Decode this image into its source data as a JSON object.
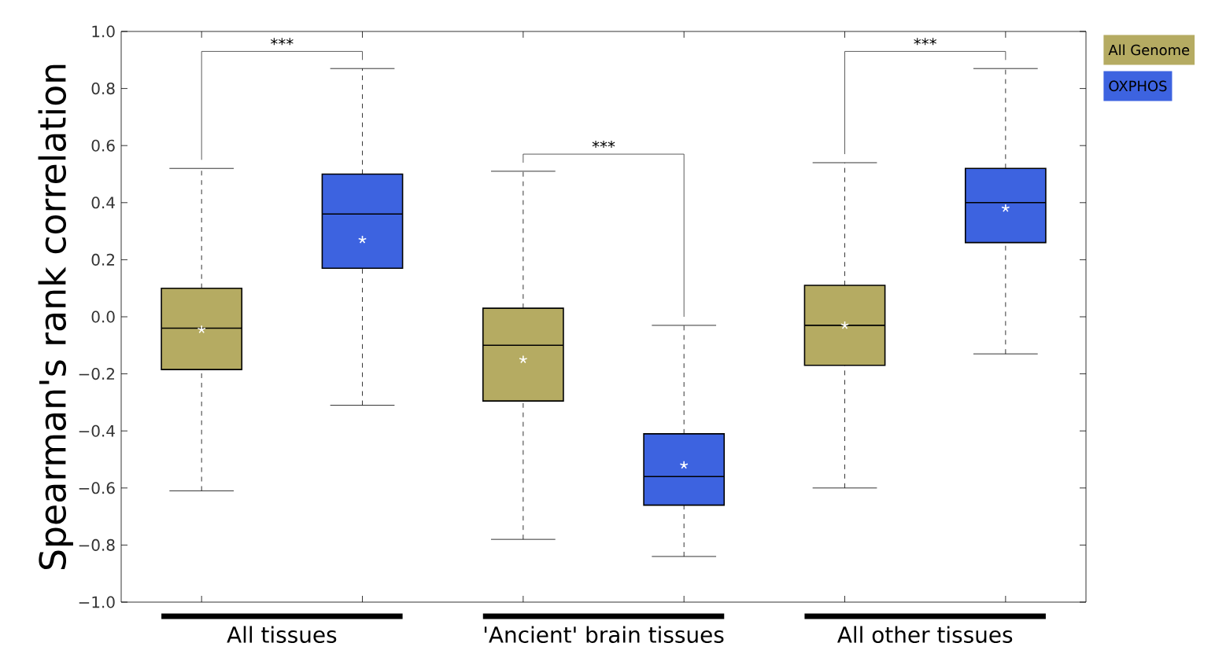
{
  "chart_data": {
    "type": "box",
    "ylabel": "Spearman's rank correlation",
    "categories": [
      "All tissues",
      "'Ancient' brain tissues",
      "All other tissues"
    ],
    "series": [
      {
        "name": "All Genome",
        "color": "#b5ab62",
        "boxes": [
          {
            "low": -0.61,
            "q1": -0.185,
            "median": -0.04,
            "q3": 0.1,
            "high": 0.52,
            "mean": -0.045
          },
          {
            "low": -0.78,
            "q1": -0.295,
            "median": -0.1,
            "q3": 0.03,
            "high": 0.51,
            "mean": -0.15
          },
          {
            "low": -0.6,
            "q1": -0.17,
            "median": -0.03,
            "q3": 0.11,
            "high": 0.54,
            "mean": -0.03
          }
        ]
      },
      {
        "name": "OXPHOS",
        "color": "#3d63e0",
        "boxes": [
          {
            "low": -0.31,
            "q1": 0.17,
            "median": 0.36,
            "q3": 0.5,
            "high": 0.87,
            "mean": 0.27
          },
          {
            "low": -0.84,
            "q1": -0.66,
            "median": -0.56,
            "q3": -0.41,
            "high": -0.03,
            "mean": -0.52
          },
          {
            "low": -0.13,
            "q1": 0.26,
            "median": 0.4,
            "q3": 0.52,
            "high": 0.87,
            "mean": 0.38
          }
        ]
      }
    ],
    "ylim": [
      -1.0,
      1.0
    ],
    "yticks": [
      {
        "value": -1.0,
        "label": "−1.0"
      },
      {
        "value": -0.8,
        "label": "−0.8"
      },
      {
        "value": -0.6,
        "label": "−0.6"
      },
      {
        "value": -0.4,
        "label": "−0.4"
      },
      {
        "value": -0.2,
        "label": "−0.2"
      },
      {
        "value": 0.0,
        "label": "0.0"
      },
      {
        "value": 0.2,
        "label": "0.2"
      },
      {
        "value": 0.4,
        "label": "0.4"
      },
      {
        "value": 0.6,
        "label": "0.6"
      },
      {
        "value": 0.8,
        "label": "0.8"
      },
      {
        "value": 1.0,
        "label": "1.0"
      }
    ],
    "annotations": [
      "***",
      "***",
      "***"
    ],
    "legend": "top right",
    "grid": false
  }
}
